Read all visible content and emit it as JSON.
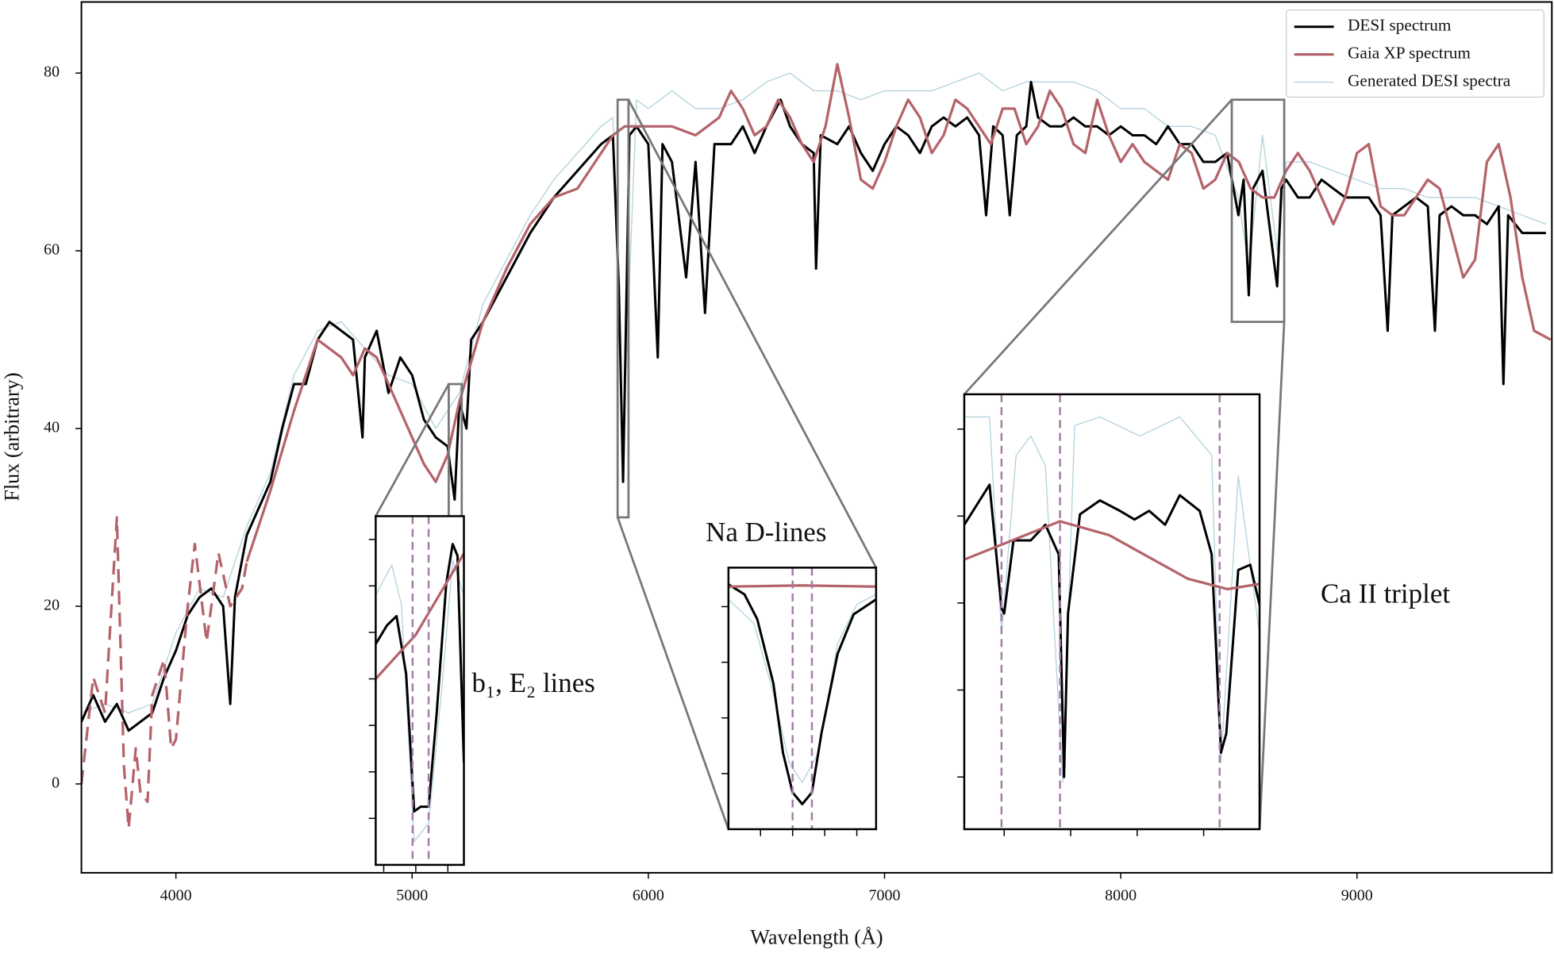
{
  "chart_data": {
    "type": "line",
    "xlabel": "Wavelength (Å)",
    "ylabel": "Flux (arbitrary)",
    "xlim": [
      3600,
      9825
    ],
    "ylim": [
      -10,
      88
    ],
    "xticks": [
      4000,
      5000,
      6000,
      7000,
      8000,
      9000
    ],
    "yticks": [
      0,
      20,
      40,
      60,
      80
    ],
    "legend": "upper right",
    "series": [
      {
        "name": "DESI spectrum",
        "color": "#000000",
        "x": [
          3600,
          3650,
          3700,
          3750,
          3800,
          3850,
          3900,
          3950,
          4000,
          4050,
          4100,
          4150,
          4200,
          4230,
          4250,
          4300,
          4350,
          4400,
          4450,
          4500,
          4550,
          4600,
          4650,
          4700,
          4750,
          4790,
          4800,
          4850,
          4900,
          4950,
          5000,
          5050,
          5100,
          5150,
          5180,
          5200,
          5230,
          5250,
          5300,
          5400,
          5500,
          5600,
          5700,
          5800,
          5850,
          5875,
          5893,
          5920,
          5950,
          6000,
          6040,
          6060,
          6100,
          6160,
          6200,
          6240,
          6280,
          6350,
          6400,
          6450,
          6500,
          6560,
          6600,
          6650,
          6700,
          6710,
          6730,
          6800,
          6850,
          6900,
          6950,
          7000,
          7050,
          7100,
          7150,
          7200,
          7250,
          7300,
          7350,
          7400,
          7430,
          7460,
          7500,
          7530,
          7560,
          7600,
          7620,
          7650,
          7700,
          7750,
          7800,
          7850,
          7900,
          7950,
          8000,
          8050,
          8100,
          8150,
          8200,
          8250,
          8300,
          8350,
          8400,
          8450,
          8498,
          8520,
          8542,
          8560,
          8600,
          8662,
          8680,
          8700,
          8750,
          8800,
          8850,
          8900,
          8950,
          9000,
          9050,
          9100,
          9130,
          9150,
          9200,
          9250,
          9300,
          9330,
          9350,
          9400,
          9450,
          9500,
          9550,
          9600,
          9620,
          9640,
          9700,
          9750,
          9800
        ],
        "values": [
          7,
          10,
          7,
          9,
          6,
          7,
          8,
          12,
          15,
          19,
          21,
          22,
          20,
          9,
          21,
          28,
          31,
          34,
          40,
          45,
          45,
          50,
          52,
          51,
          50,
          39,
          48,
          51,
          44,
          48,
          46,
          41,
          39,
          38,
          32,
          43,
          40,
          50,
          52,
          57,
          62,
          66,
          69,
          72,
          73,
          56,
          34,
          73,
          74,
          72,
          48,
          72,
          70,
          57,
          70,
          53,
          72,
          72,
          74,
          71,
          74,
          77,
          74,
          72,
          71,
          58,
          73,
          72,
          74,
          71,
          69,
          72,
          74,
          73,
          71,
          74,
          75,
          74,
          75,
          73,
          64,
          74,
          73,
          64,
          73,
          74,
          79,
          75,
          74,
          74,
          75,
          74,
          74,
          73,
          74,
          73,
          73,
          72,
          74,
          72,
          72,
          70,
          70,
          71,
          64,
          68,
          55,
          67,
          69,
          56,
          67,
          68,
          66,
          66,
          68,
          67,
          66,
          66,
          66,
          64,
          51,
          64,
          65,
          66,
          65,
          51,
          64,
          65,
          64,
          64,
          63,
          65,
          45,
          64,
          62,
          62,
          62
        ]
      },
      {
        "name": "Gaia XP spectrum",
        "color": "#b5636b",
        "dashed_x": [
          3600,
          3650,
          3700,
          3750,
          3780,
          3800,
          3830,
          3850,
          3880,
          3900,
          3950,
          3980,
          4000,
          4050,
          4080,
          4130,
          4180,
          4230,
          4280,
          4300
        ],
        "dashed_values": [
          0,
          12,
          8,
          30,
          2,
          -5,
          4,
          -1,
          -2,
          10,
          14,
          4,
          5,
          20,
          27,
          16,
          26,
          20,
          22,
          25
        ],
        "x": [
          4300,
          4400,
          4500,
          4600,
          4700,
          4750,
          4800,
          4850,
          4900,
          4950,
          5000,
          5050,
          5100,
          5150,
          5200,
          5300,
          5400,
          5500,
          5600,
          5700,
          5800,
          5850,
          5900,
          6000,
          6100,
          6200,
          6300,
          6350,
          6400,
          6450,
          6500,
          6550,
          6600,
          6650,
          6700,
          6750,
          6800,
          6850,
          6900,
          6950,
          7000,
          7050,
          7100,
          7150,
          7200,
          7250,
          7300,
          7350,
          7400,
          7450,
          7500,
          7550,
          7600,
          7650,
          7700,
          7750,
          7800,
          7850,
          7900,
          7950,
          8000,
          8050,
          8100,
          8150,
          8200,
          8250,
          8300,
          8350,
          8400,
          8450,
          8500,
          8550,
          8600,
          8650,
          8700,
          8750,
          8800,
          8850,
          8900,
          8950,
          9000,
          9050,
          9100,
          9150,
          9200,
          9250,
          9300,
          9350,
          9400,
          9450,
          9500,
          9550,
          9600,
          9650,
          9700,
          9750,
          9820
        ],
        "values": [
          25,
          33,
          42,
          50,
          48,
          46,
          49,
          48,
          45,
          42,
          39,
          36,
          34,
          37,
          43,
          52,
          58,
          63,
          66,
          67,
          71,
          73,
          74,
          74,
          74,
          73,
          75,
          78,
          76,
          73,
          74,
          77,
          75,
          72,
          70,
          74,
          81,
          75,
          68,
          67,
          70,
          74,
          77,
          75,
          71,
          73,
          77,
          76,
          74,
          72,
          76,
          76,
          72,
          74,
          78,
          76,
          72,
          71,
          77,
          73,
          70,
          72,
          70,
          69,
          68,
          72,
          71,
          67,
          68,
          71,
          70,
          67,
          66,
          66,
          69,
          71,
          69,
          66,
          63,
          66,
          71,
          72,
          65,
          64,
          64,
          66,
          68,
          67,
          62,
          57,
          59,
          70,
          72,
          66,
          57,
          51,
          50
        ]
      },
      {
        "name": "Generated DESI spectra",
        "color": "#a8cbd8",
        "x": [
          3600,
          3700,
          3800,
          3900,
          4000,
          4100,
          4200,
          4300,
          4400,
          4500,
          4600,
          4700,
          4800,
          4900,
          5000,
          5100,
          5200,
          5300,
          5400,
          5500,
          5600,
          5700,
          5800,
          5850,
          5893,
          5950,
          6000,
          6100,
          6200,
          6300,
          6400,
          6500,
          6600,
          6700,
          6800,
          6900,
          7000,
          7100,
          7200,
          7300,
          7400,
          7500,
          7600,
          7700,
          7800,
          7900,
          8000,
          8100,
          8200,
          8300,
          8400,
          8498,
          8542,
          8600,
          8662,
          8700,
          8800,
          8900,
          9000,
          9100,
          9200,
          9300,
          9400,
          9500,
          9600,
          9700,
          9800
        ],
        "values": [
          8,
          9,
          8,
          9,
          17,
          22,
          21,
          29,
          35,
          46,
          51,
          52,
          49,
          46,
          45,
          40,
          44,
          54,
          59,
          64,
          68,
          71,
          74,
          75,
          38,
          77,
          76,
          78,
          76,
          76,
          77,
          79,
          80,
          78,
          78,
          77,
          78,
          78,
          78,
          79,
          80,
          78,
          79,
          79,
          79,
          78,
          76,
          76,
          74,
          74,
          73,
          66,
          58,
          73,
          60,
          70,
          70,
          69,
          68,
          67,
          67,
          66,
          66,
          66,
          65,
          64,
          63
        ]
      }
    ],
    "insets": [
      {
        "label": "b₁, E₂ lines",
        "xlim": [
          5155,
          5210
        ],
        "ylim": [
          30,
          45
        ],
        "xticks": [
          5160,
          5180,
          5200
        ],
        "yticks": [
          32,
          34,
          36,
          38,
          40,
          42,
          44
        ],
        "line_positions": [
          5178,
          5188
        ],
        "series": [
          {
            "x": [
              5155,
              5162,
              5168,
              5174,
              5179,
              5183,
              5188,
              5193,
              5199,
              5203,
              5206,
              5210
            ],
            "values": [
              39.5,
              40.3,
              40.7,
              38.2,
              32.3,
              32.5,
              32.5,
              36.5,
              42.1,
              43.8,
              43.3,
              34.4
            ]
          },
          {
            "x": [
              5155,
              5180,
              5210
            ],
            "values": [
              38.0,
              39.9,
              43.4
            ]
          },
          {
            "x": [
              5155,
              5165,
              5171,
              5179,
              5188,
              5196,
              5203,
              5210
            ],
            "values": [
              41.6,
              42.9,
              41.2,
              31.0,
              31.8,
              37.4,
              43.1,
              41.6
            ]
          }
        ]
      },
      {
        "label": "Na D-lines",
        "xlim": [
          5870,
          5916
        ],
        "ylim": [
          30,
          77
        ],
        "xticks": [
          5880,
          5890,
          5900,
          5910
        ],
        "yticks": [
          40,
          50,
          60,
          70
        ],
        "line_positions": [
          5890,
          5896
        ],
        "series": [
          {
            "x": [
              5870,
              5875,
              5879,
              5884,
              5887,
              5890,
              5893,
              5896,
              5899,
              5904,
              5909,
              5916
            ],
            "values": [
              74.0,
              72.2,
              67.7,
              56.2,
              43.7,
              36.6,
              34.5,
              36.6,
              47.3,
              61.5,
              68.6,
              71.3
            ]
          },
          {
            "x": [
              5870,
              5893,
              5916
            ],
            "values": [
              73.6,
              73.8,
              73.6
            ]
          },
          {
            "x": [
              5870,
              5878,
              5884,
              5889,
              5893,
              5898,
              5904,
              5910,
              5916
            ],
            "values": [
              71.3,
              66.9,
              54.4,
              41.9,
              38.4,
              43.7,
              63.3,
              70.4,
              72.2
            ]
          }
        ]
      },
      {
        "label": "Ca II triplet",
        "xlim": [
          8470,
          8692
        ],
        "ylim": [
          52,
          77
        ],
        "xticks": [
          8500,
          8550,
          8600,
          8650
        ],
        "yticks": [
          55,
          60,
          65,
          70,
          75
        ],
        "line_positions": [
          8498,
          8542,
          8662
        ],
        "series": [
          {
            "x": [
              8470,
              8489,
              8498,
              8500,
              8507,
              8520,
              8531,
              8541,
              8545,
              8548,
              8557,
              8572,
              8587,
              8598,
              8609,
              8621,
              8632,
              8647,
              8656,
              8663,
              8667,
              8676,
              8685,
              8692
            ],
            "values": [
              69.5,
              71.8,
              64.7,
              64.4,
              68.6,
              68.6,
              69.5,
              67.8,
              55.0,
              64.4,
              70.1,
              70.9,
              70.3,
              69.8,
              70.3,
              69.5,
              71.2,
              70.3,
              67.8,
              56.4,
              57.5,
              66.9,
              67.2,
              64.9
            ]
          },
          {
            "x": [
              8470,
              8542,
              8579,
              8638,
              8668,
              8692
            ],
            "values": [
              67.5,
              69.7,
              68.9,
              66.4,
              65.8,
              66.1
            ]
          },
          {
            "x": [
              8470,
              8489,
              8498,
              8509,
              8520,
              8531,
              8544,
              8553,
              8572,
              8602,
              8632,
              8656,
              8663,
              8676,
              8692
            ],
            "values": [
              75.7,
              75.7,
              63.2,
              73.5,
              74.6,
              72.9,
              54.7,
              75.2,
              75.7,
              74.6,
              75.7,
              73.5,
              55.8,
              72.3,
              63.2
            ]
          }
        ]
      }
    ]
  }
}
